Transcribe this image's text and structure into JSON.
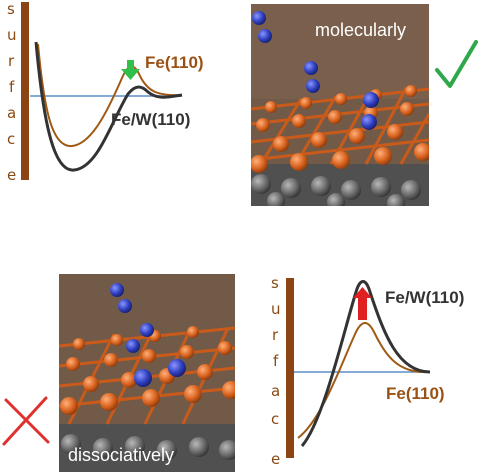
{
  "surface_letters": [
    "s",
    "u",
    "r",
    "f",
    "a",
    "c",
    "e"
  ],
  "top_left_energy_plot": {
    "label_fe": "Fe(110)",
    "label_few": "Fe/W(110)"
  },
  "bottom_right_energy_plot": {
    "label_fe": "Fe(110)",
    "label_few": "Fe/W(110)"
  },
  "panel_top": {
    "caption": "molecularly"
  },
  "panel_bottom": {
    "caption": "dissociatively"
  },
  "colors": {
    "surface_bar": "#8b4513",
    "fe_curve": "#a05a14",
    "few_curve": "#333333",
    "baseline": "#5b8dc9",
    "arrow_down": "#2fbf4a",
    "arrow_up": "#e02020",
    "check": "#2ea84a",
    "cross": "#e03030",
    "scene_bg": "#6b5545",
    "fe_atom": "#d9631f",
    "n_atom": "#2f3fbf",
    "w_atom": "#6a6a6a"
  }
}
